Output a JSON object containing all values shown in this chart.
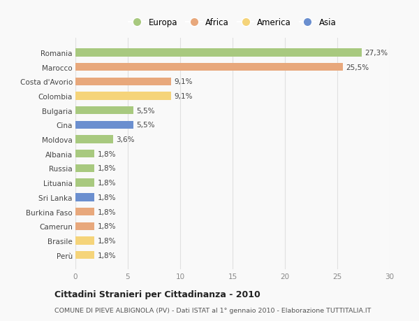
{
  "countries": [
    "Romania",
    "Marocco",
    "Costa d'Avorio",
    "Colombia",
    "Bulgaria",
    "Cina",
    "Moldova",
    "Albania",
    "Russia",
    "Lituania",
    "Sri Lanka",
    "Burkina Faso",
    "Camerun",
    "Brasile",
    "Perù"
  ],
  "values": [
    27.3,
    25.5,
    9.1,
    9.1,
    5.5,
    5.5,
    3.6,
    1.8,
    1.8,
    1.8,
    1.8,
    1.8,
    1.8,
    1.8,
    1.8
  ],
  "labels": [
    "27,3%",
    "25,5%",
    "9,1%",
    "9,1%",
    "5,5%",
    "5,5%",
    "3,6%",
    "1,8%",
    "1,8%",
    "1,8%",
    "1,8%",
    "1,8%",
    "1,8%",
    "1,8%",
    "1,8%"
  ],
  "colors": [
    "#a8c97f",
    "#e8a87c",
    "#e8a87c",
    "#f5d47a",
    "#a8c97f",
    "#6b8fcf",
    "#a8c97f",
    "#a8c97f",
    "#a8c97f",
    "#a8c97f",
    "#6b8fcf",
    "#e8a87c",
    "#e8a87c",
    "#f5d47a",
    "#f5d47a"
  ],
  "legend_labels": [
    "Europa",
    "Africa",
    "America",
    "Asia"
  ],
  "legend_colors": [
    "#a8c97f",
    "#e8a87c",
    "#f5d47a",
    "#6b8fcf"
  ],
  "xlim": [
    0,
    30
  ],
  "xticks": [
    0,
    5,
    10,
    15,
    20,
    25,
    30
  ],
  "title": "Cittadini Stranieri per Cittadinanza - 2010",
  "subtitle": "COMUNE DI PIEVE ALBIGNOLA (PV) - Dati ISTAT al 1° gennaio 2010 - Elaborazione TUTTITALIA.IT",
  "bg_color": "#f9f9f9",
  "grid_color": "#e0e0e0"
}
